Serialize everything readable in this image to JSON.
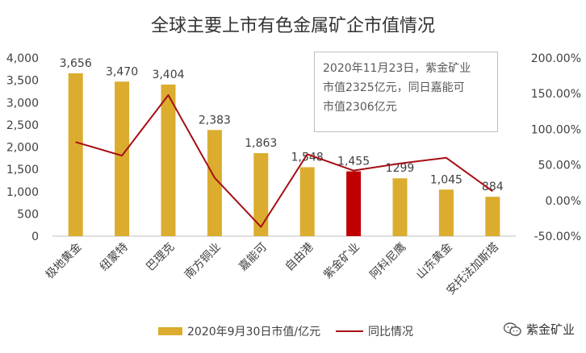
{
  "chart_data": {
    "type": "bar",
    "title": "全球主要上市有色金属矿企市值情况",
    "categories": [
      "极地黄金",
      "纽蒙特",
      "巴理克",
      "南方铜业",
      "嘉能可",
      "自由港",
      "紫金矿业",
      "阿科尼鹰",
      "山东黄金",
      "安托法加斯塔"
    ],
    "series": [
      {
        "name": "2020年9月30日市值/亿元",
        "type": "bar",
        "axis": "left",
        "values": [
          3656,
          3470,
          3404,
          2383,
          1863,
          1548,
          1455,
          1299,
          1045,
          884
        ],
        "labels": [
          "3,656",
          "3,470",
          "3,404",
          "2,383",
          "1,863",
          "1,548",
          "1,455",
          "1299",
          "1,045",
          "884"
        ]
      },
      {
        "name": "同比情况",
        "type": "line",
        "axis": "right",
        "values": [
          82,
          63,
          148,
          32,
          -37,
          65,
          42,
          52,
          60,
          13
        ]
      }
    ],
    "highlight_index": 6,
    "y_left": {
      "min": 0,
      "max": 4000,
      "step": 500,
      "tick_labels": [
        "0",
        "500",
        "1,000",
        "1,500",
        "2,000",
        "2,500",
        "3,000",
        "3,500",
        "4,000"
      ]
    },
    "y_right": {
      "min": -50,
      "max": 200,
      "step": 50,
      "tick_labels": [
        "-50.00%",
        "0.00%",
        "50.00%",
        "100.00%",
        "150.00%",
        "200.00%"
      ]
    },
    "grid": false,
    "legend_position": "bottom"
  },
  "annotation": {
    "line1": "2020年11月23日，紫金矿业",
    "line2": "市值2325亿元，同日嘉能可",
    "line3": "市值2306亿元"
  },
  "watermark": {
    "text": "紫金矿业",
    "icon": "wechat-icon"
  },
  "colors": {
    "bar": "#dbac2e",
    "bar_highlight": "#c00000",
    "line": "#a50f15",
    "axis": "#bfbfbf"
  }
}
